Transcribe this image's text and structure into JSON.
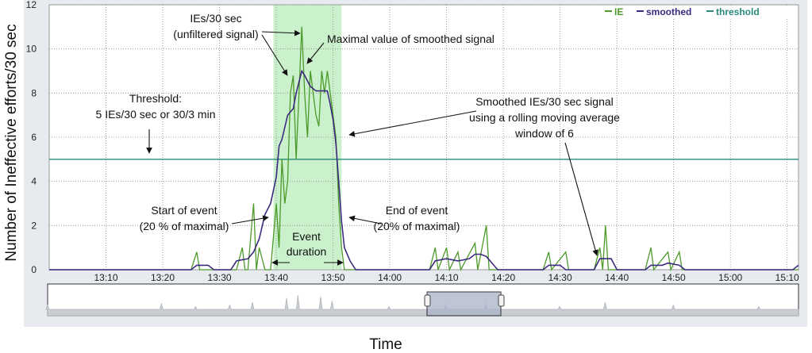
{
  "chart_data": {
    "type": "line",
    "ylabel": "Number of Ineffective efforts/30 sec",
    "xlabel": "Time",
    "ylim": [
      0,
      12
    ],
    "yticks": [
      0,
      2,
      4,
      6,
      8,
      10,
      12
    ],
    "xlim_minutes": [
      13.0,
      15.1
    ],
    "xtick_labels": [
      "13:10",
      "13:20",
      "13:30",
      "13:40",
      "13:50",
      "14:00",
      "14:10",
      "14:20",
      "14:30",
      "14:40",
      "14:50",
      "15:00",
      "15:10"
    ],
    "xtick_minutes": [
      790,
      800,
      810,
      820,
      830,
      840,
      850,
      860,
      870,
      880,
      890,
      900,
      910
    ],
    "x_start_minute": 780,
    "x_end_minute": 912,
    "event_start_minute": 819.5,
    "event_end_minute": 831.5,
    "threshold": 5,
    "legend": [
      {
        "name": "IE",
        "color": "#4c9a2a"
      },
      {
        "name": "smoothed",
        "color": "#3d2a80"
      },
      {
        "name": "threshold",
        "color": "#2a8a7a"
      }
    ],
    "series": [
      {
        "name": "IE",
        "color": "#4c9a2a",
        "points": [
          [
            780,
            0
          ],
          [
            805,
            0
          ],
          [
            806,
            0.8
          ],
          [
            806.5,
            0
          ],
          [
            807,
            0
          ],
          [
            807.5,
            0
          ],
          [
            808,
            0
          ],
          [
            812,
            0
          ],
          [
            813,
            0
          ],
          [
            814,
            1
          ],
          [
            814.5,
            0
          ],
          [
            815,
            0
          ],
          [
            816,
            3
          ],
          [
            816.5,
            0
          ],
          [
            817,
            1
          ],
          [
            818,
            0
          ],
          [
            819,
            0
          ],
          [
            820,
            3
          ],
          [
            820.5,
            1
          ],
          [
            821,
            5
          ],
          [
            821.5,
            3
          ],
          [
            822,
            4
          ],
          [
            822.5,
            8
          ],
          [
            823,
            8.8
          ],
          [
            823.5,
            5
          ],
          [
            824,
            8
          ],
          [
            824.5,
            11
          ],
          [
            825,
            8
          ],
          [
            825.5,
            6
          ],
          [
            826,
            9
          ],
          [
            826.5,
            8
          ],
          [
            827,
            7
          ],
          [
            827.5,
            6.5
          ],
          [
            828,
            9
          ],
          [
            828.5,
            8
          ],
          [
            829,
            9
          ],
          [
            829.5,
            8
          ],
          [
            830,
            7
          ],
          [
            830.5,
            6
          ],
          [
            831,
            3
          ],
          [
            831.5,
            1
          ],
          [
            832,
            0
          ],
          [
            847,
            0
          ],
          [
            848,
            1
          ],
          [
            848.5,
            0
          ],
          [
            850,
            1
          ],
          [
            850.5,
            0
          ],
          [
            852,
            0.8
          ],
          [
            852.5,
            0
          ],
          [
            855,
            1.2
          ],
          [
            855.5,
            0
          ],
          [
            857,
            2
          ],
          [
            857.5,
            0
          ],
          [
            860,
            0
          ],
          [
            867,
            0
          ],
          [
            868,
            0.8
          ],
          [
            868.5,
            0
          ],
          [
            871,
            0.8
          ],
          [
            871.5,
            0
          ],
          [
            876,
            0
          ],
          [
            877,
            1
          ],
          [
            877.5,
            0
          ],
          [
            878,
            2
          ],
          [
            878.5,
            0
          ],
          [
            880,
            0
          ],
          [
            885,
            0
          ],
          [
            886,
            1
          ],
          [
            886.5,
            0
          ],
          [
            889,
            0.8
          ],
          [
            889.5,
            0
          ],
          [
            891,
            0.8
          ],
          [
            891.5,
            0
          ],
          [
            892,
            0
          ],
          [
            911,
            0
          ],
          [
            912,
            0
          ]
        ]
      },
      {
        "name": "smoothed",
        "color": "#3d2a80",
        "points": [
          [
            780,
            0
          ],
          [
            805,
            0
          ],
          [
            806,
            0.2
          ],
          [
            808,
            0.2
          ],
          [
            809,
            0
          ],
          [
            812,
            0
          ],
          [
            813,
            0.4
          ],
          [
            815,
            0.5
          ],
          [
            816,
            0.8
          ],
          [
            817,
            1.4
          ],
          [
            818,
            2.5
          ],
          [
            819,
            3
          ],
          [
            820,
            4.2
          ],
          [
            820.5,
            5.6
          ],
          [
            821,
            5.9
          ],
          [
            822,
            7
          ],
          [
            823,
            7.3
          ],
          [
            823.5,
            8
          ],
          [
            824,
            8.5
          ],
          [
            824.5,
            9
          ],
          [
            825,
            8.8
          ],
          [
            826,
            8.3
          ],
          [
            827,
            8.1
          ],
          [
            828,
            8.1
          ],
          [
            829,
            8.1
          ],
          [
            829.5,
            7.5
          ],
          [
            830,
            6.8
          ],
          [
            830.5,
            5.7
          ],
          [
            831,
            4
          ],
          [
            831.5,
            2.2
          ],
          [
            832,
            1
          ],
          [
            833,
            0.4
          ],
          [
            834,
            0
          ],
          [
            847,
            0
          ],
          [
            848,
            0.4
          ],
          [
            850,
            0.5
          ],
          [
            852,
            0.4
          ],
          [
            854,
            0.5
          ],
          [
            855,
            0.7
          ],
          [
            856,
            0.7
          ],
          [
            857,
            0.6
          ],
          [
            858,
            0.3
          ],
          [
            859,
            0
          ],
          [
            867,
            0
          ],
          [
            868,
            0.2
          ],
          [
            870,
            0.2
          ],
          [
            871,
            0
          ],
          [
            876,
            0
          ],
          [
            877,
            0.5
          ],
          [
            879,
            0.5
          ],
          [
            880,
            0
          ],
          [
            885,
            0
          ],
          [
            886,
            0.2
          ],
          [
            888,
            0.2
          ],
          [
            889,
            0.3
          ],
          [
            891,
            0.2
          ],
          [
            892,
            0
          ],
          [
            911,
            0
          ],
          [
            912,
            0.2
          ]
        ]
      }
    ],
    "annotations": [
      {
        "lines": [
          "IEs/30 sec",
          "(unfiltered signal)"
        ]
      },
      {
        "lines": [
          "Maximal value of smoothed signal"
        ]
      },
      {
        "lines": [
          "Threshold:",
          "5 IEs/30 sec or 30/3 min"
        ]
      },
      {
        "lines": [
          "Smoothed IEs/30 sec signal",
          "using a rolling moving average",
          "window of 6"
        ]
      },
      {
        "lines": [
          "Start of event",
          "(20 % of maximal)"
        ]
      },
      {
        "lines": [
          "End of event",
          "(20% of maximal)"
        ]
      },
      {
        "lines": [
          "Event",
          "duration"
        ]
      }
    ],
    "overview_spikes_minutes": [
      [
        780,
        0.3
      ],
      [
        800,
        0.4
      ],
      [
        806,
        0.2
      ],
      [
        812,
        0.3
      ],
      [
        816,
        0.5
      ],
      [
        822,
        0.8
      ],
      [
        824,
        1.0
      ],
      [
        828,
        0.9
      ],
      [
        830,
        0.6
      ],
      [
        840,
        0.2
      ],
      [
        850,
        0.3
      ],
      [
        857,
        0.4
      ],
      [
        870,
        0.2
      ],
      [
        878,
        0.5
      ],
      [
        890,
        0.3
      ],
      [
        905,
        0.2
      ]
    ]
  }
}
